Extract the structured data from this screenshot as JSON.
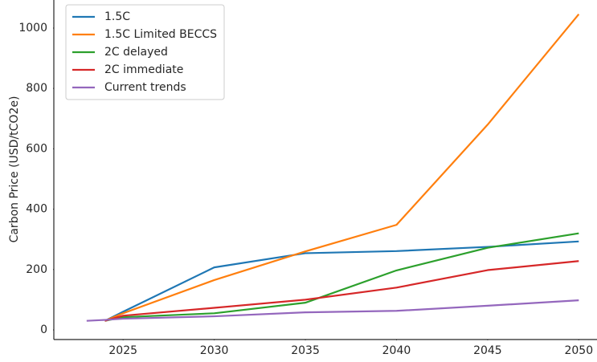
{
  "chart_data": {
    "type": "line",
    "y_label": "Carbon Price (USD/tCO2e)",
    "x": [
      2023,
      2024,
      2025,
      2030,
      2035,
      2040,
      2045,
      2050
    ],
    "series": [
      {
        "name": "1.5C",
        "color": "#1f77b4",
        "values": [
          null,
          30,
          60,
          207,
          254,
          261,
          275,
          293
        ]
      },
      {
        "name": "1.5C Limited BECCS",
        "color": "#ff7f0e",
        "values": [
          null,
          30,
          55,
          165,
          260,
          348,
          680,
          1046
        ]
      },
      {
        "name": "2C delayed",
        "color": "#2ca02c",
        "values": [
          null,
          30,
          42,
          55,
          90,
          197,
          272,
          320
        ]
      },
      {
        "name": "2C immediate",
        "color": "#d62728",
        "values": [
          null,
          30,
          47,
          73,
          100,
          140,
          198,
          228
        ]
      },
      {
        "name": "Current trends",
        "color": "#9467bd",
        "values": [
          30,
          33,
          37,
          45,
          58,
          63,
          80,
          98
        ]
      }
    ],
    "xlim": [
      2021.2,
      2051
    ],
    "ylim": [
      -32,
      1093
    ],
    "xticks": [
      2025,
      2030,
      2035,
      2040,
      2045,
      2050
    ],
    "yticks": [
      0,
      200,
      400,
      600,
      800,
      1000
    ],
    "grid": false,
    "legend": "upper left"
  }
}
